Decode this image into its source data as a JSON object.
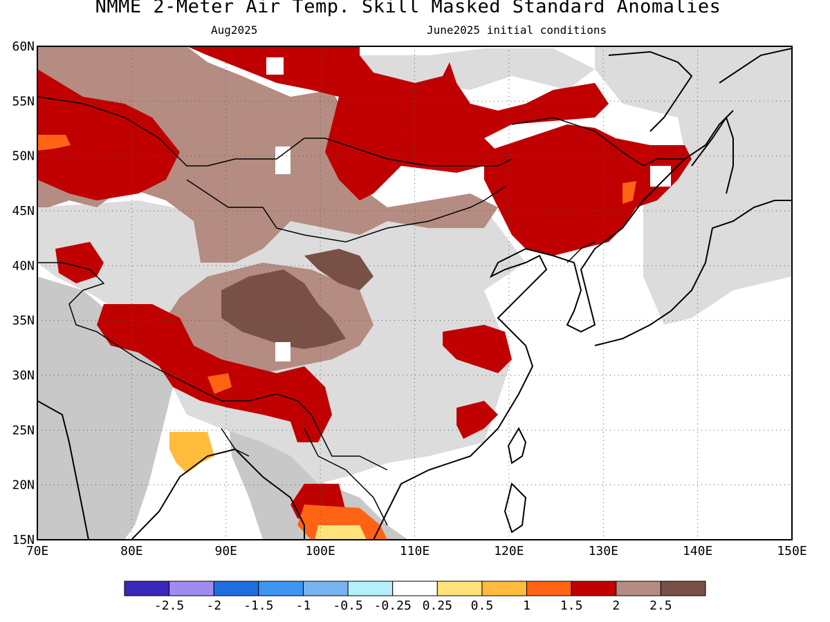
{
  "header": {
    "title": "NMME 2-Meter Air Temp. Skill Masked Standard Anomalies",
    "target_month": "Aug2025",
    "initial_conditions": "June2025 initial conditions"
  },
  "map": {
    "lon_range": [
      70,
      150
    ],
    "lat_range": [
      15,
      60
    ],
    "lon_ticks": [
      "70E",
      "80E",
      "90E",
      "100E",
      "110E",
      "120E",
      "130E",
      "140E",
      "150E"
    ],
    "lat_ticks": [
      "60N",
      "55N",
      "50N",
      "45N",
      "40N",
      "35N",
      "30N",
      "25N",
      "20N",
      "15N"
    ],
    "gridlines": "dotted",
    "no_skill_color": "#dcdcdc",
    "land_gray_color": "#c8c8c8"
  },
  "colorbar": {
    "colors": [
      "#3a28b8",
      "#a08cf0",
      "#1f6ee0",
      "#3c96f2",
      "#78b4f0",
      "#b4f0fa",
      "#ffffff",
      "#ffe27a",
      "#ffbc3c",
      "#ff6414",
      "#c00000",
      "#b48c82",
      "#785046"
    ],
    "labels": [
      "-2.5",
      "-2",
      "-1.5",
      "-1",
      "-0.5",
      "-0.25",
      "0.25",
      "0.5",
      "1",
      "1.5",
      "2",
      "2.5"
    ]
  },
  "regions": [
    {
      "name": "northwest-brown",
      "category": "2.5",
      "color": "#b48c82"
    },
    {
      "name": "tibet-darkbrown",
      "category": ">2.5",
      "color": "#785046"
    },
    {
      "name": "china-red",
      "category": "2",
      "color": "#c00000"
    },
    {
      "name": "india-yellow",
      "category": "0.5",
      "color": "#ffbc3c"
    },
    {
      "name": "indochina-orange",
      "category": "1.5",
      "color": "#ff6414"
    }
  ]
}
